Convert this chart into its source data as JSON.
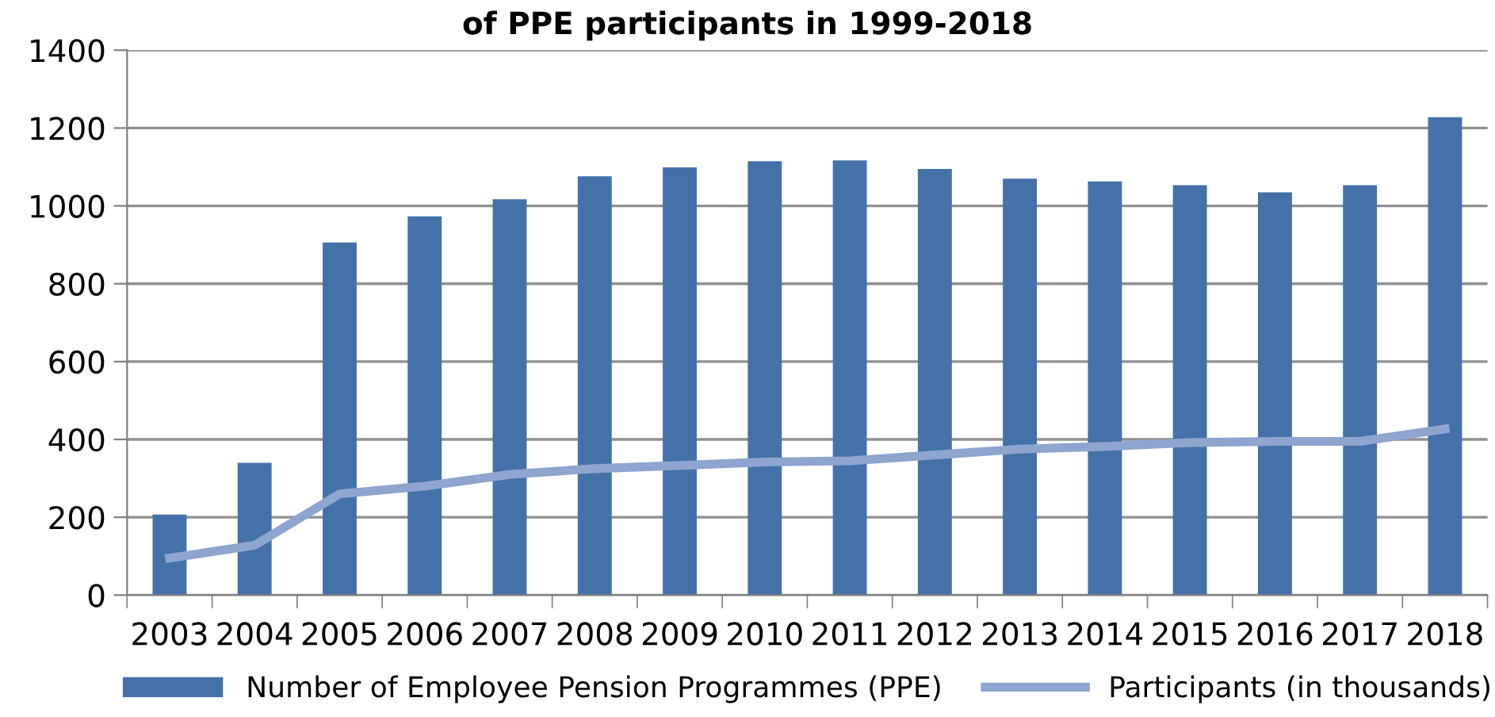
{
  "chart_data": {
    "type": "bar",
    "title": "of PPE participants in 1999-2018",
    "categories": [
      "2003",
      "2004",
      "2005",
      "2006",
      "2007",
      "2008",
      "2009",
      "2010",
      "2011",
      "2012",
      "2013",
      "2014",
      "2015",
      "2016",
      "2017",
      "2018"
    ],
    "series": [
      {
        "name": "Number of Employee Pension Programmes (PPE)",
        "color": "#4472a8",
        "values": [
          207,
          340,
          906,
          973,
          1017,
          1076,
          1099,
          1115,
          1117,
          1095,
          1070,
          1063,
          1053,
          1035,
          1053,
          1228
        ]
      },
      {
        "name": "Participants (in thousands)",
        "type": "line",
        "color": "#8da5cf",
        "values": [
          95,
          128,
          260,
          280,
          310,
          325,
          333,
          342,
          345,
          360,
          375,
          382,
          392,
          395,
          395,
          427
        ]
      }
    ],
    "ylim": [
      0,
      1400
    ],
    "yticks": [
      0,
      200,
      400,
      600,
      800,
      1000,
      1200,
      1400
    ],
    "grid": "y",
    "legend": "bottom",
    "marker": "none",
    "line_style": "solid"
  }
}
